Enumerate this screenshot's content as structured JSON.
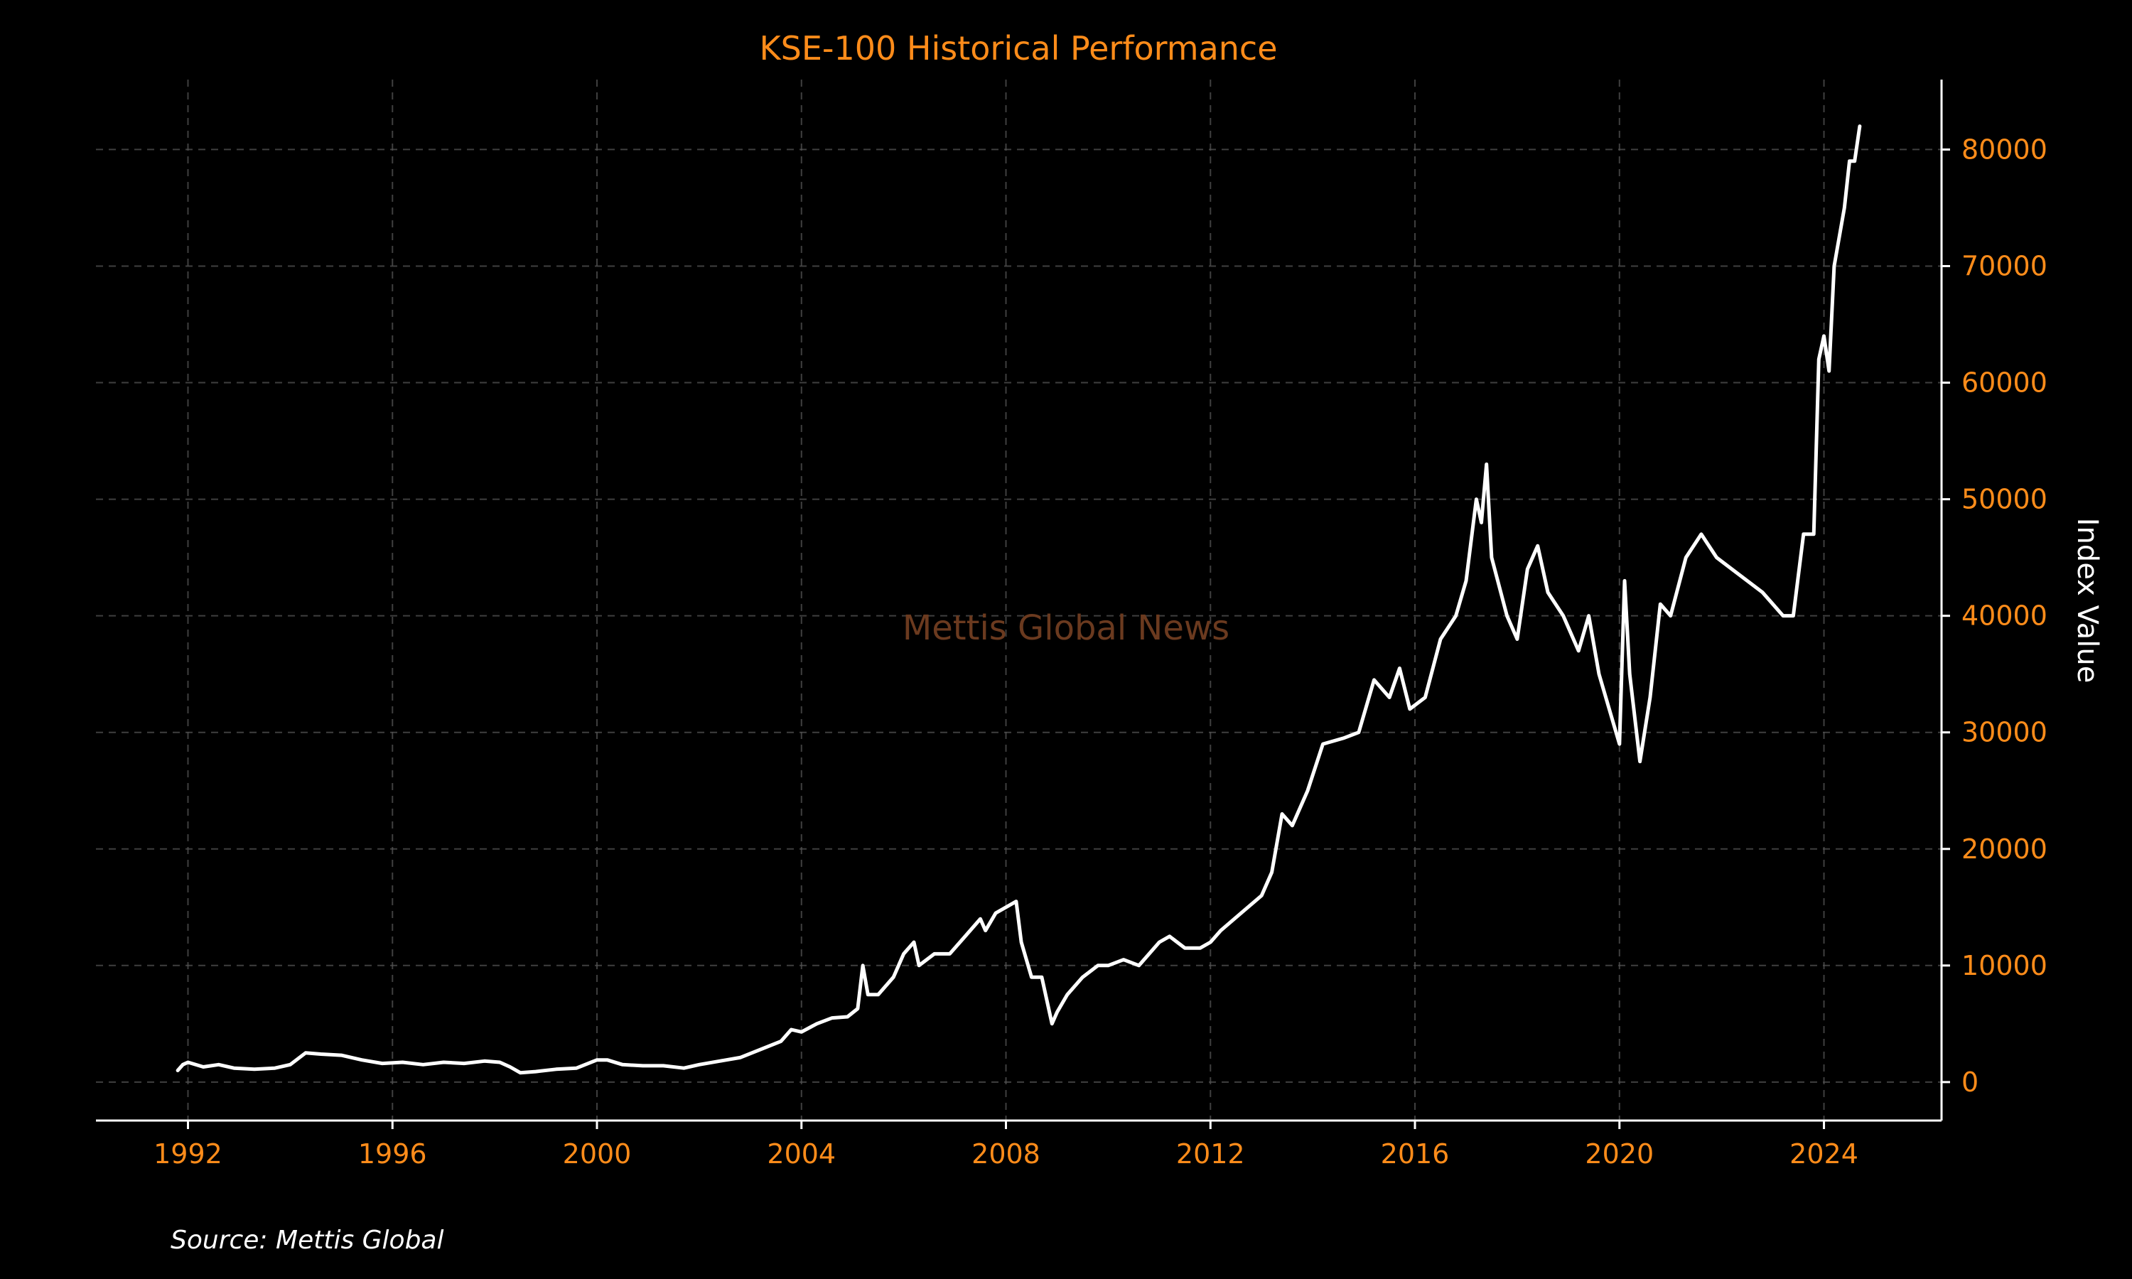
{
  "chart_data": {
    "type": "line",
    "title": "KSE-100 Historical Performance",
    "ylabel": "Index Value",
    "xlabel": "",
    "watermark": "Mettis Global News",
    "source": "Source: Mettis Global",
    "x_ticks": [
      "1992",
      "1996",
      "2000",
      "2004",
      "2008",
      "2012",
      "2016",
      "2020",
      "2024"
    ],
    "y_ticks": [
      "0",
      "10000",
      "20000",
      "30000",
      "40000",
      "50000",
      "60000",
      "70000",
      "80000"
    ],
    "xlim": [
      1990.2,
      2026.3
    ],
    "ylim": [
      -3300,
      86000
    ],
    "grid": true,
    "y_axis_side": "right",
    "colors": {
      "background": "#000000",
      "line": "#ffffff",
      "text_accent": "#ff8c1a"
    },
    "series": [
      {
        "x": [
          1991.8,
          1991.9,
          1992.0,
          1992.3,
          1992.6,
          1992.9,
          1993.3,
          1993.7,
          1994.0,
          1994.3,
          1994.6,
          1995.0,
          1995.4,
          1995.8,
          1996.2,
          1996.6,
          1997.0,
          1997.4,
          1997.8,
          1998.1,
          1998.3,
          1998.5,
          1998.8,
          1999.2,
          1999.6,
          2000.0,
          2000.2,
          2000.5,
          2000.9,
          2001.3,
          2001.7,
          2002.0,
          2002.4,
          2002.8,
          2003.2,
          2003.6,
          2003.8,
          2004.0,
          2004.3,
          2004.6,
          2004.9,
          2005.1,
          2005.2,
          2005.3,
          2005.5,
          2005.8,
          2006.0,
          2006.2,
          2006.3,
          2006.6,
          2006.9,
          2007.2,
          2007.5,
          2007.6,
          2007.8,
          2008.0,
          2008.2,
          2008.3,
          2008.5,
          2008.7,
          2008.9,
          2009.0,
          2009.2,
          2009.5,
          2009.8,
          2010.0,
          2010.3,
          2010.6,
          2011.0,
          2011.2,
          2011.5,
          2011.8,
          2012.0,
          2012.2,
          2012.6,
          2013.0,
          2013.2,
          2013.4,
          2013.6,
          2013.9,
          2014.2,
          2014.6,
          2014.9,
          2015.2,
          2015.5,
          2015.7,
          2015.9,
          2016.2,
          2016.5,
          2016.8,
          2017.0,
          2017.2,
          2017.3,
          2017.4,
          2017.5,
          2017.8,
          2018.0,
          2018.2,
          2018.4,
          2018.6,
          2018.9,
          2019.2,
          2019.4,
          2019.6,
          2019.8,
          2020.0,
          2020.1,
          2020.2,
          2020.4,
          2020.6,
          2020.8,
          2021.0,
          2021.3,
          2021.6,
          2021.9,
          2022.2,
          2022.5,
          2022.8,
          2023.0,
          2023.2,
          2023.4,
          2023.6,
          2023.8,
          2023.9,
          2024.0,
          2024.1,
          2024.2,
          2024.4,
          2024.5,
          2024.6,
          2024.7
        ],
        "values": [
          1000,
          1500,
          1700,
          1300,
          1500,
          1200,
          1100,
          1200,
          1500,
          2500,
          2400,
          2300,
          1900,
          1600,
          1700,
          1500,
          1700,
          1600,
          1800,
          1700,
          1300,
          800,
          900,
          1100,
          1200,
          1900,
          1900,
          1500,
          1400,
          1400,
          1200,
          1500,
          1800,
          2100,
          2800,
          3500,
          4500,
          4300,
          5000,
          5500,
          5600,
          6300,
          10000,
          7500,
          7500,
          9000,
          11000,
          12000,
          10000,
          11000,
          11000,
          12500,
          14000,
          13000,
          14500,
          15000,
          15500,
          12000,
          9000,
          9000,
          5000,
          6000,
          7500,
          9000,
          10000,
          10000,
          10500,
          10000,
          12000,
          12500,
          11500,
          11500,
          12000,
          13000,
          14500,
          16000,
          18000,
          23000,
          22000,
          25000,
          29000,
          29500,
          30000,
          34500,
          33000,
          35500,
          32000,
          33000,
          38000,
          40000,
          43000,
          50000,
          48000,
          53000,
          45000,
          40000,
          38000,
          44000,
          46000,
          42000,
          40000,
          37000,
          40000,
          35000,
          32000,
          29000,
          43000,
          35000,
          27500,
          33000,
          41000,
          40000,
          45000,
          47000,
          45000,
          44000,
          43000,
          42000,
          41000,
          40000,
          40000,
          47000,
          47000,
          62000,
          64000,
          61000,
          70000,
          75000,
          79000,
          79000,
          82000
        ]
      }
    ]
  }
}
